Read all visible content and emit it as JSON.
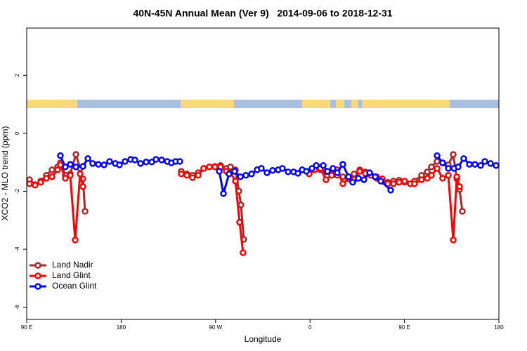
{
  "chart_data": {
    "type": "line",
    "title": "40N-45N Annual Mean (Ver 9)   2014-09-06 to 2018-12-31",
    "x_label": "Longitude",
    "y_label": "XCO2 - MLO trend (ppm)",
    "xlim": [
      90,
      540
    ],
    "xticks": [
      {
        "value": 90,
        "label": "90 E"
      },
      {
        "value": 180,
        "label": "180"
      },
      {
        "value": 270,
        "label": "90 W"
      },
      {
        "value": 360,
        "label": "0"
      },
      {
        "value": 450,
        "label": "90 E"
      },
      {
        "value": 540,
        "label": "180"
      }
    ],
    "ylim": [
      -6.42,
      3.63
    ],
    "yticks": [
      2,
      0,
      -2,
      -4,
      -6
    ],
    "legend": "bottom-left",
    "series": [
      {
        "name": "Land Nadir",
        "color": "#a52a2a",
        "x": [
          92.7,
          98.0,
          103.4,
          108.7,
          114.1,
          119.5,
          122.1,
          126.8,
          131.5,
          136.9,
          140.9,
          143.6,
          145.6,
          null,
          237.3,
          242.7,
          248.0,
          253.4,
          258.7,
          264.1,
          269.4,
          274.8,
          280.2,
          284.2,
          288.9,
          292.2,
          294.2,
          296.9,
          null,
          359.2,
          364.5,
          369.9,
          375.2,
          380.6,
          385.9,
          391.3,
          396.7,
          402.0,
          407.4,
          412.7,
          418.1,
          423.5,
          428.8,
          434.2,
          439.5,
          444.9,
          450.2,
          455.6,
          459.6,
          466.3,
          471.7,
          475.7,
          481.1,
          486.4,
          491.8,
          496.5,
          499.9,
          502.5,
          505.2
        ],
        "values": [
          -1.6,
          -1.77,
          -1.65,
          -1.45,
          -1.26,
          -1.16,
          -1.02,
          -1.45,
          -1.4,
          -0.73,
          -1.21,
          -1.57,
          -2.69,
          null,
          -1.31,
          -1.4,
          -1.45,
          -1.36,
          -1.21,
          -1.16,
          -1.14,
          -1.11,
          -1.21,
          -1.16,
          -1.26,
          -1.99,
          -2.47,
          -3.66,
          null,
          -1.33,
          -1.21,
          -1.26,
          -1.33,
          -1.4,
          -1.45,
          -1.5,
          -1.57,
          -1.4,
          -1.26,
          -1.33,
          -1.45,
          -1.55,
          -1.65,
          -1.69,
          -1.65,
          -1.62,
          -1.69,
          -1.74,
          -1.65,
          -1.45,
          -1.33,
          -1.16,
          -0.97,
          -1.02,
          -1.09,
          -0.73,
          -1.57,
          -1.94,
          -2.69
        ]
      },
      {
        "name": "Land Glint",
        "color": "#ff0000",
        "x": [
          92.7,
          98.0,
          103.4,
          108.7,
          114.1,
          119.5,
          122.1,
          126.8,
          131.5,
          136.2,
          140.9,
          143.6,
          null,
          237.3,
          242.7,
          248.0,
          253.4,
          258.7,
          264.1,
          269.4,
          274.8,
          280.2,
          284.2,
          288.9,
          292.9,
          296.2,
          null,
          359.2,
          364.5,
          369.9,
          375.2,
          380.6,
          385.9,
          391.3,
          396.7,
          402.0,
          407.4,
          412.7,
          418.1,
          423.5,
          428.8,
          434.2,
          439.5,
          444.9,
          450.2,
          455.6,
          459.6,
          466.3,
          471.7,
          475.7,
          481.1,
          486.4,
          491.8,
          496.5,
          499.9,
          502.5
        ],
        "values": [
          -1.74,
          -1.79,
          -1.69,
          -1.55,
          -1.5,
          -1.26,
          -1.09,
          -1.55,
          -1.45,
          -3.68,
          -1.4,
          -1.84,
          null,
          -1.4,
          -1.45,
          -1.53,
          -1.45,
          -1.21,
          -1.16,
          -1.16,
          -1.16,
          -1.31,
          -1.36,
          -1.65,
          -3.07,
          -4.12,
          null,
          -1.4,
          -1.26,
          -1.21,
          -1.6,
          -1.45,
          -1.26,
          -1.74,
          -1.57,
          -1.6,
          -1.31,
          -1.38,
          -1.45,
          -1.5,
          -1.57,
          -1.74,
          -1.74,
          -1.69,
          -1.65,
          -1.74,
          -1.74,
          -1.6,
          -1.55,
          -1.45,
          -1.21,
          -1.55,
          -1.45,
          -3.68,
          -1.5,
          -1.84
        ]
      },
      {
        "name": "Ocean Glint",
        "color": "#0000ff",
        "x": [
          122.1,
          126.8,
          131.5,
          136.9,
          143.6,
          148.3,
          152.9,
          158.3,
          163.7,
          169.0,
          174.4,
          178.4,
          183.7,
          189.1,
          193.1,
          198.5,
          203.8,
          209.2,
          213.2,
          218.6,
          223.9,
          227.9,
          232.0,
          236.0,
          null,
          273.5,
          277.5,
          282.8,
          288.2,
          293.6,
          298.9,
          304.3,
          309.6,
          313.6,
          319.0,
          324.4,
          329.7,
          333.7,
          339.1,
          344.4,
          348.5,
          352.5,
          356.5,
          361.9,
          365.9,
          372.6,
          376.6,
          381.9,
          385.9,
          391.3,
          396.7,
          400.7,
          406.1,
          411.4,
          416.8,
          422.1,
          427.5,
          436.9,
          null,
          481.1,
          486.4,
          491.8,
          497.2,
          501.2,
          506.5,
          511.9,
          517.2,
          522.6,
          526.6,
          532.0,
          537.3
        ],
        "values": [
          -0.77,
          -1.16,
          -1.07,
          -1.16,
          -1.14,
          -0.87,
          -1.04,
          -1.07,
          -1.09,
          -0.97,
          -1.04,
          -1.09,
          -0.97,
          -0.9,
          -0.92,
          -1.04,
          -0.99,
          -0.99,
          -0.9,
          -0.92,
          -0.97,
          -1.02,
          -0.97,
          -0.97,
          null,
          -1.31,
          -2.08,
          -1.4,
          -1.31,
          -1.5,
          -1.45,
          -1.4,
          -1.26,
          -1.21,
          -1.36,
          -1.28,
          -1.26,
          -1.21,
          -1.33,
          -1.33,
          -1.38,
          -1.26,
          -1.31,
          -1.21,
          -1.11,
          -1.11,
          -1.31,
          -1.21,
          -1.36,
          -1.07,
          -1.5,
          -1.69,
          -1.55,
          -1.6,
          -1.36,
          -1.5,
          -1.65,
          -1.96,
          null,
          -0.77,
          -1.02,
          -1.21,
          -1.21,
          -1.16,
          -0.87,
          -1.07,
          -1.07,
          -1.11,
          -0.97,
          -1.04,
          -1.11
        ]
      }
    ]
  }
}
